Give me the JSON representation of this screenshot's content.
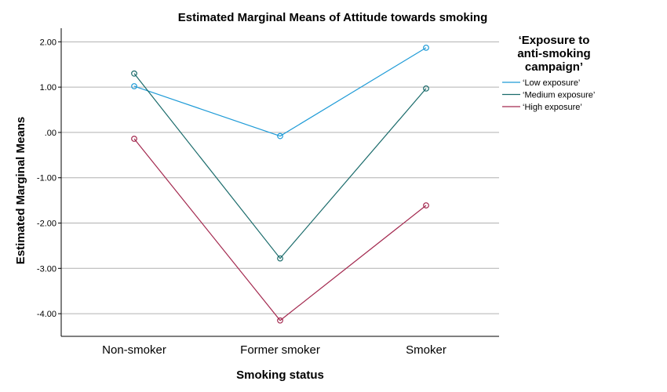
{
  "chart_data": {
    "type": "line",
    "title": "Estimated Marginal Means of Attitude towards smoking",
    "xlabel": "Smoking status",
    "ylabel": "Estimated Marginal Means",
    "categories": [
      "Non-smoker",
      "Former smoker",
      "Smoker"
    ],
    "ylim": [
      -4.5,
      2.3
    ],
    "yticks": [
      2,
      1,
      0,
      -1,
      -2,
      -3,
      -4
    ],
    "ytick_labels": [
      "2.00",
      "1.00",
      ".00",
      "-1.00",
      "-2.00",
      "-3.00",
      "-4.00"
    ],
    "grid": true,
    "legend": {
      "title_lines": [
        "‘Exposure to",
        "anti-smoking",
        "campaign’"
      ],
      "placement": "right"
    },
    "series": [
      {
        "name": "‘Low exposure’",
        "color": "#1f9bd7",
        "values": [
          1.02,
          -0.08,
          1.87
        ]
      },
      {
        "name": "‘Medium exposure’",
        "color": "#1a6b6b",
        "values": [
          1.3,
          -2.78,
          0.97
        ]
      },
      {
        "name": "‘High exposure’",
        "color": "#a3294f",
        "values": [
          -0.14,
          -4.15,
          -1.61
        ]
      }
    ]
  }
}
